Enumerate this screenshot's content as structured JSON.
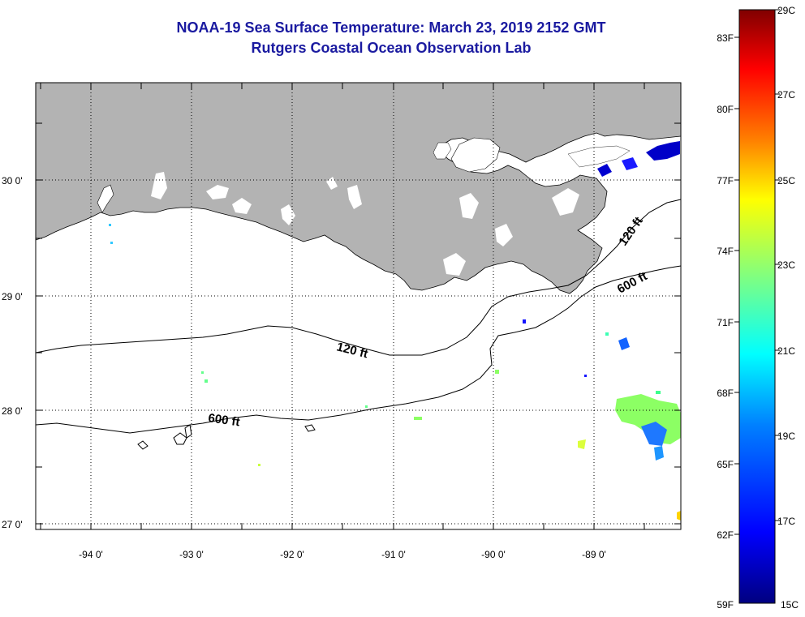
{
  "title": {
    "line1": "NOAA-19 Sea Surface Temperature:  March 23, 2019 2152 GMT",
    "line2": "Rutgers Coastal Ocean Observation Lab"
  },
  "map": {
    "lat_labels": [
      "30 0'",
      "29 0'",
      "28 0'",
      "27 0'"
    ],
    "lon_labels": [
      "-94 0'",
      "-93 0'",
      "-92 0'",
      "-91 0'",
      "-90 0'",
      "-89 0'"
    ],
    "contours": [
      {
        "label": "120 ft",
        "rotate_label": "120 ft"
      },
      {
        "label": "600 ft",
        "rotate_label": "600 ft"
      }
    ],
    "colors": {
      "land": "#b3b3b3",
      "lakes": "#ffffff",
      "ocean": "#ffffff"
    }
  },
  "colorbar": {
    "fahrenheit": [
      "83F",
      "80F",
      "77F",
      "74F",
      "71F",
      "68F",
      "65F",
      "62F",
      "59F"
    ],
    "celsius": [
      "29C",
      "27C",
      "25C",
      "23C",
      "21C",
      "19C",
      "17C",
      "15C"
    ],
    "stops": [
      "#000080",
      "#0000ff",
      "#0080ff",
      "#00ffff",
      "#80ff80",
      "#ffff00",
      "#ff8000",
      "#ff0000",
      "#800000"
    ]
  }
}
